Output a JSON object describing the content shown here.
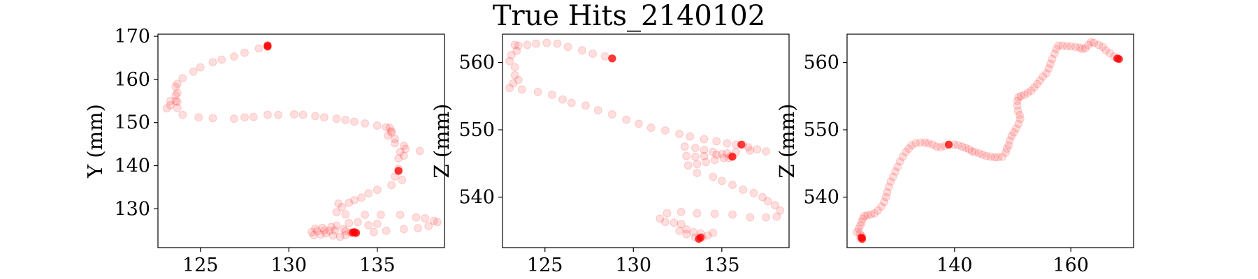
{
  "figure_title": "True Hits_2140102",
  "colors": {
    "hit": "#ff0000"
  },
  "chart_data": [
    {
      "type": "scatter",
      "xlabel": "",
      "ylabel": "Y (mm)",
      "xlim": [
        122.6,
        138.8
      ],
      "ylim": [
        121,
        170.5
      ],
      "xticks": [
        125,
        130,
        135
      ],
      "yticks": [
        130,
        140,
        150,
        160,
        170
      ],
      "points": [
        [
          128.8,
          167.8
        ],
        [
          128.3,
          167.2
        ],
        [
          127.5,
          166.2
        ],
        [
          126.9,
          165.3
        ],
        [
          126.2,
          164.6
        ],
        [
          125.7,
          164.0
        ],
        [
          125.0,
          162.8
        ],
        [
          124.6,
          161.8
        ],
        [
          124.0,
          160.3
        ],
        [
          123.7,
          159.0
        ],
        [
          123.6,
          158.3
        ],
        [
          123.7,
          156.9
        ],
        [
          123.6,
          156.3
        ],
        [
          123.6,
          155.0
        ],
        [
          123.3,
          155.0
        ],
        [
          123.7,
          154.8
        ],
        [
          123.3,
          154.0
        ],
        [
          123.7,
          153.4
        ],
        [
          123.1,
          153.3
        ],
        [
          124.0,
          151.8
        ],
        [
          124.9,
          151.2
        ],
        [
          125.7,
          151.0
        ],
        [
          126.9,
          150.9
        ],
        [
          127.5,
          151.2
        ],
        [
          128.0,
          151.3
        ],
        [
          128.8,
          151.8
        ],
        [
          129.4,
          151.8
        ],
        [
          130.3,
          151.9
        ],
        [
          130.8,
          151.8
        ],
        [
          131.5,
          151.5
        ],
        [
          132.0,
          151.2
        ],
        [
          132.7,
          150.9
        ],
        [
          133.2,
          150.6
        ],
        [
          133.7,
          150.2
        ],
        [
          134.3,
          149.8
        ],
        [
          135.0,
          149.3
        ],
        [
          135.5,
          148.9
        ],
        [
          135.7,
          148.8
        ],
        [
          135.8,
          148.0
        ],
        [
          135.8,
          147.7
        ],
        [
          135.6,
          147.0
        ],
        [
          136.0,
          146.2
        ],
        [
          136.0,
          145.2
        ],
        [
          136.5,
          144.6
        ],
        [
          136.6,
          143.9
        ],
        [
          137.4,
          143.4
        ],
        [
          136.3,
          143.2
        ],
        [
          136.5,
          142.3
        ],
        [
          136.2,
          141.7
        ],
        [
          136.2,
          139.3
        ],
        [
          136.2,
          138.8
        ],
        [
          136.0,
          137.5
        ],
        [
          136.4,
          136.7
        ],
        [
          135.8,
          135.5
        ],
        [
          135.0,
          134.4
        ],
        [
          134.5,
          133.6
        ],
        [
          134.1,
          132.6
        ],
        [
          133.7,
          132.0
        ],
        [
          133.4,
          131.4
        ],
        [
          132.8,
          131.2
        ],
        [
          133.0,
          130.4
        ],
        [
          132.7,
          129.2
        ],
        [
          133.2,
          128.7
        ],
        [
          134.3,
          128.6
        ],
        [
          135.2,
          128.6
        ],
        [
          136.3,
          128.6
        ],
        [
          137.2,
          128.0
        ],
        [
          137.7,
          127.8
        ],
        [
          138.2,
          127.2
        ],
        [
          138.4,
          126.9
        ],
        [
          137.9,
          126.0
        ],
        [
          137.3,
          125.5
        ],
        [
          136.5,
          125.3
        ],
        [
          135.5,
          124.9
        ],
        [
          134.8,
          124.6
        ],
        [
          133.8,
          124.5
        ],
        [
          133.7,
          124.3
        ],
        [
          133.5,
          124.5
        ],
        [
          133.2,
          124.8
        ],
        [
          132.6,
          125.0
        ],
        [
          132.3,
          124.9
        ],
        [
          132.0,
          125.0
        ],
        [
          131.6,
          124.8
        ],
        [
          131.3,
          124.6
        ],
        [
          131.4,
          123.9
        ],
        [
          131.8,
          124.0
        ],
        [
          132.1,
          124.3
        ],
        [
          132.5,
          123.8
        ],
        [
          132.9,
          123.5
        ],
        [
          133.2,
          123.9
        ],
        [
          133.1,
          125.3
        ],
        [
          133.4,
          126.7
        ],
        [
          133.9,
          126.9
        ],
        [
          134.5,
          126.2
        ],
        [
          135.0,
          126.5
        ],
        [
          132.7,
          126.1
        ],
        [
          132.4,
          125.8
        ],
        [
          131.9,
          125.6
        ],
        [
          131.5,
          125.4
        ]
      ],
      "highlights": [
        [
          128.8,
          167.9
        ],
        [
          128.8,
          167.6
        ],
        [
          136.2,
          138.8
        ],
        [
          133.6,
          124.5
        ],
        [
          133.8,
          124.4
        ],
        [
          133.7,
          124.6
        ]
      ]
    },
    {
      "type": "scatter",
      "xlabel": "",
      "ylabel": "Z (mm)",
      "xlim": [
        122.6,
        138.8
      ],
      "ylim": [
        532.5,
        564.2
      ],
      "xticks": [
        125,
        130,
        135
      ],
      "yticks": [
        540,
        550,
        560
      ],
      "points": [
        [
          128.8,
          560.6
        ],
        [
          128.4,
          560.9
        ],
        [
          127.7,
          561.3
        ],
        [
          127.1,
          561.8
        ],
        [
          126.3,
          562.3
        ],
        [
          125.7,
          562.8
        ],
        [
          125.1,
          562.9
        ],
        [
          124.5,
          562.8
        ],
        [
          124.0,
          562.6
        ],
        [
          123.5,
          562.5
        ],
        [
          123.3,
          562.6
        ],
        [
          123.4,
          561.7
        ],
        [
          123.1,
          561.1
        ],
        [
          123.0,
          560.2
        ],
        [
          123.3,
          559.3
        ],
        [
          123.3,
          558.1
        ],
        [
          123.5,
          557.4
        ],
        [
          123.2,
          556.9
        ],
        [
          123.0,
          556.2
        ],
        [
          123.7,
          556.0
        ],
        [
          124.6,
          555.6
        ],
        [
          125.4,
          555.2
        ],
        [
          126.0,
          554.5
        ],
        [
          126.5,
          554.0
        ],
        [
          127.3,
          553.6
        ],
        [
          128.0,
          552.9
        ],
        [
          128.8,
          552.3
        ],
        [
          129.6,
          551.5
        ],
        [
          130.3,
          550.9
        ],
        [
          131.0,
          550.3
        ],
        [
          131.8,
          549.9
        ],
        [
          132.6,
          549.4
        ],
        [
          133.2,
          549.0
        ],
        [
          134.0,
          548.6
        ],
        [
          134.7,
          548.3
        ],
        [
          135.3,
          548.0
        ],
        [
          135.8,
          547.8
        ],
        [
          136.2,
          547.8
        ],
        [
          136.5,
          547.4
        ],
        [
          137.0,
          547.1
        ],
        [
          137.5,
          546.8
        ],
        [
          136.6,
          546.9
        ],
        [
          135.8,
          546.7
        ],
        [
          135.3,
          546.5
        ],
        [
          134.7,
          546.3
        ],
        [
          134.0,
          546.1
        ],
        [
          133.5,
          546.0
        ],
        [
          133.0,
          546.1
        ],
        [
          132.9,
          547.5
        ],
        [
          133.5,
          547.3
        ],
        [
          134.0,
          547.0
        ],
        [
          134.5,
          546.7
        ],
        [
          135.0,
          546.4
        ],
        [
          135.5,
          546.1
        ],
        [
          135.4,
          545.8
        ],
        [
          135.6,
          546.0
        ],
        [
          135.1,
          545.8
        ],
        [
          134.6,
          545.5
        ],
        [
          134.1,
          545.2
        ],
        [
          133.6,
          544.9
        ],
        [
          133.1,
          544.7
        ],
        [
          133.6,
          543.6
        ],
        [
          134.5,
          543.0
        ],
        [
          135.0,
          542.4
        ],
        [
          135.6,
          541.8
        ],
        [
          136.2,
          541.1
        ],
        [
          136.8,
          540.6
        ],
        [
          137.3,
          540.0
        ],
        [
          137.6,
          539.4
        ],
        [
          138.0,
          538.8
        ],
        [
          138.3,
          538.0
        ],
        [
          138.1,
          537.1
        ],
        [
          137.5,
          537.0
        ],
        [
          136.6,
          537.0
        ],
        [
          135.6,
          537.4
        ],
        [
          134.6,
          537.5
        ],
        [
          133.6,
          537.6
        ],
        [
          132.7,
          537.8
        ],
        [
          131.9,
          537.6
        ],
        [
          131.5,
          536.8
        ],
        [
          131.8,
          536.3
        ],
        [
          132.3,
          536.2
        ],
        [
          132.7,
          536.0
        ],
        [
          133.0,
          535.2
        ],
        [
          133.4,
          534.8
        ],
        [
          133.8,
          534.6
        ],
        [
          134.5,
          534.7
        ],
        [
          134.2,
          534.3
        ],
        [
          133.9,
          534.0
        ],
        [
          133.5,
          534.0
        ],
        [
          133.0,
          534.5
        ],
        [
          132.6,
          535.0
        ]
      ],
      "highlights": [
        [
          128.8,
          560.6
        ],
        [
          136.1,
          547.8
        ],
        [
          135.6,
          546.0
        ],
        [
          133.7,
          533.8
        ],
        [
          133.8,
          534.0
        ]
      ]
    },
    {
      "type": "scatter",
      "xlabel": "",
      "ylabel": "Z (mm)",
      "xlim": [
        121.5,
        170.8
      ],
      "ylim": [
        532.5,
        564.2
      ],
      "xticks": [
        140,
        160
      ],
      "yticks": [
        540,
        550,
        560
      ],
      "points": [
        [
          168.0,
          560.6
        ],
        [
          167.4,
          560.9
        ],
        [
          166.7,
          561.4
        ],
        [
          166.0,
          561.8
        ],
        [
          165.5,
          562.3
        ],
        [
          164.8,
          562.6
        ],
        [
          164.0,
          562.9
        ],
        [
          163.5,
          563.0
        ],
        [
          163.0,
          562.6
        ],
        [
          162.5,
          562.1
        ],
        [
          162.0,
          562.0
        ],
        [
          161.5,
          562.2
        ],
        [
          160.8,
          562.3
        ],
        [
          160.0,
          562.4
        ],
        [
          159.3,
          562.4
        ],
        [
          158.6,
          562.5
        ],
        [
          157.9,
          562.5
        ],
        [
          157.5,
          562.0
        ],
        [
          157.2,
          561.3
        ],
        [
          156.8,
          560.5
        ],
        [
          156.5,
          559.8
        ],
        [
          156.2,
          559.1
        ],
        [
          155.8,
          558.4
        ],
        [
          155.2,
          557.9
        ],
        [
          154.7,
          557.3
        ],
        [
          154.2,
          556.8
        ],
        [
          153.7,
          556.3
        ],
        [
          153.2,
          555.8
        ],
        [
          152.6,
          555.5
        ],
        [
          152.0,
          555.2
        ],
        [
          151.4,
          555.0
        ],
        [
          151.0,
          554.8
        ],
        [
          150.8,
          554.3
        ],
        [
          150.8,
          553.6
        ],
        [
          150.9,
          552.8
        ],
        [
          151.2,
          552.2
        ],
        [
          151.3,
          551.6
        ],
        [
          151.0,
          550.9
        ],
        [
          150.6,
          550.2
        ],
        [
          150.2,
          549.6
        ],
        [
          149.8,
          549.1
        ],
        [
          149.5,
          548.4
        ],
        [
          149.3,
          547.7
        ],
        [
          149.0,
          547.2
        ],
        [
          148.8,
          546.6
        ],
        [
          148.2,
          546.0
        ],
        [
          147.5,
          545.9
        ],
        [
          146.9,
          545.9
        ],
        [
          146.2,
          546.0
        ],
        [
          145.5,
          546.1
        ],
        [
          144.8,
          546.3
        ],
        [
          144.2,
          546.5
        ],
        [
          143.5,
          546.7
        ],
        [
          143.0,
          546.8
        ],
        [
          142.5,
          547.1
        ],
        [
          141.9,
          547.3
        ],
        [
          141.3,
          547.5
        ],
        [
          140.6,
          547.7
        ],
        [
          139.9,
          547.8
        ],
        [
          139.0,
          547.8
        ],
        [
          138.3,
          547.6
        ],
        [
          137.6,
          547.4
        ],
        [
          136.9,
          547.5
        ],
        [
          136.2,
          547.8
        ],
        [
          135.5,
          548.0
        ],
        [
          134.9,
          548.1
        ],
        [
          134.1,
          548.1
        ],
        [
          133.3,
          548.0
        ],
        [
          132.6,
          547.7
        ],
        [
          132.1,
          547.2
        ],
        [
          131.6,
          546.7
        ],
        [
          131.1,
          546.0
        ],
        [
          130.6,
          545.3
        ],
        [
          130.2,
          544.5
        ],
        [
          129.8,
          543.8
        ],
        [
          129.4,
          543.0
        ],
        [
          129.0,
          542.3
        ],
        [
          128.7,
          541.5
        ],
        [
          128.4,
          540.7
        ],
        [
          128.2,
          540.0
        ],
        [
          127.9,
          539.3
        ],
        [
          127.4,
          538.6
        ],
        [
          126.8,
          538.0
        ],
        [
          126.2,
          537.6
        ],
        [
          125.6,
          537.4
        ],
        [
          125.0,
          537.3
        ],
        [
          124.5,
          537.2
        ],
        [
          124.2,
          536.8
        ],
        [
          124.0,
          536.3
        ],
        [
          123.8,
          535.8
        ],
        [
          123.5,
          535.3
        ],
        [
          123.2,
          534.8
        ],
        [
          123.7,
          534.6
        ],
        [
          124.1,
          534.2
        ],
        [
          123.8,
          533.9
        ]
      ],
      "highlights": [
        [
          168.0,
          560.6
        ],
        [
          168.3,
          560.5
        ],
        [
          139.0,
          547.8
        ],
        [
          124.1,
          533.8
        ],
        [
          124.0,
          534.0
        ]
      ]
    }
  ]
}
